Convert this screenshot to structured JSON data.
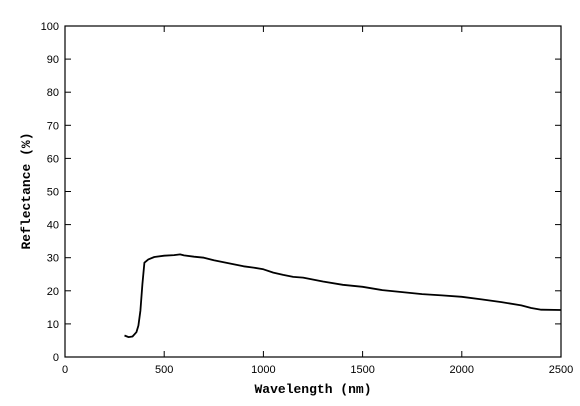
{
  "chart_data": {
    "type": "line",
    "title": "",
    "xlabel": "Wavelength (nm)",
    "ylabel": "Reflectance (%)",
    "xlim": [
      0,
      2500
    ],
    "ylim": [
      0,
      100
    ],
    "x_ticks": [
      0,
      500,
      1000,
      1500,
      2000,
      2500
    ],
    "y_ticks": [
      0,
      10,
      20,
      30,
      40,
      50,
      60,
      70,
      80,
      90,
      100
    ],
    "grid": false,
    "legend": "none",
    "series": [
      {
        "color": "#000000",
        "x": [
          300,
          320,
          340,
          360,
          370,
          380,
          390,
          400,
          420,
          450,
          500,
          550,
          580,
          600,
          650,
          700,
          750,
          800,
          850,
          900,
          950,
          1000,
          1050,
          1100,
          1150,
          1200,
          1300,
          1400,
          1500,
          1600,
          1700,
          1800,
          1900,
          2000,
          2100,
          2200,
          2300,
          2350,
          2400,
          2500
        ],
        "y": [
          6.5,
          6.0,
          6.2,
          7.5,
          9.5,
          14.0,
          22.0,
          28.5,
          29.5,
          30.2,
          30.6,
          30.8,
          31.0,
          30.7,
          30.3,
          30.0,
          29.2,
          28.6,
          28.0,
          27.4,
          27.0,
          26.5,
          25.5,
          24.8,
          24.2,
          24.0,
          22.8,
          21.8,
          21.2,
          20.2,
          19.6,
          19.0,
          18.6,
          18.2,
          17.4,
          16.6,
          15.6,
          14.8,
          14.3,
          14.2
        ]
      }
    ]
  }
}
